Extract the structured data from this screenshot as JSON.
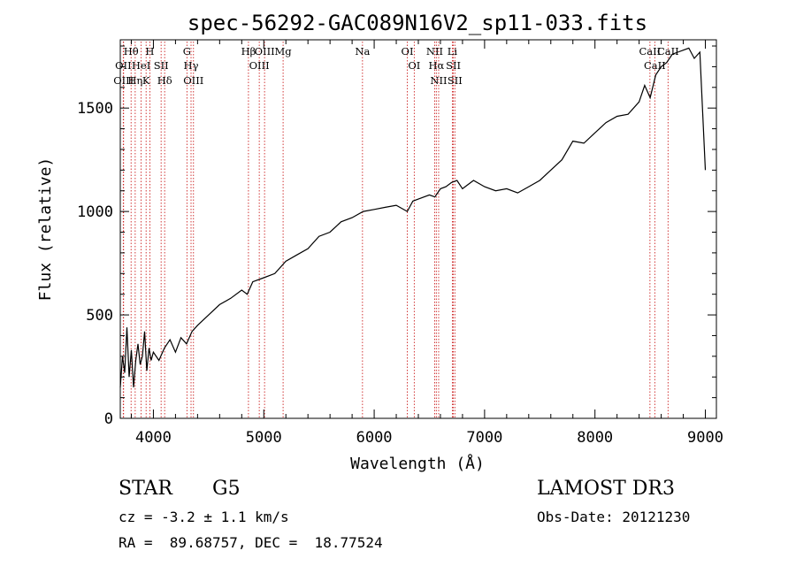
{
  "chart_data": {
    "type": "line",
    "title": "spec-56292-GAC089N16V2_sp11-033.fits",
    "xlabel": "Wavelength (Å)",
    "ylabel": "Flux (relative)",
    "xlim": [
      3700,
      9100
    ],
    "ylim": [
      0,
      1830
    ],
    "xticks": [
      4000,
      5000,
      6000,
      7000,
      8000,
      9000
    ],
    "yticks": [
      0,
      500,
      1000,
      1500
    ],
    "xticklabels": [
      "4000",
      "5000",
      "6000",
      "7000",
      "8000",
      "9000"
    ],
    "yticklabels": [
      "0",
      "500",
      "1000",
      "1500"
    ],
    "series": [
      {
        "name": "flux",
        "x": [
          3700,
          3720,
          3740,
          3760,
          3780,
          3800,
          3820,
          3840,
          3860,
          3880,
          3900,
          3920,
          3940,
          3960,
          3980,
          4000,
          4050,
          4100,
          4150,
          4200,
          4250,
          4300,
          4350,
          4400,
          4500,
          4600,
          4700,
          4800,
          4850,
          4900,
          5000,
          5100,
          5200,
          5300,
          5400,
          5500,
          5600,
          5700,
          5800,
          5900,
          6000,
          6100,
          6200,
          6300,
          6350,
          6400,
          6500,
          6550,
          6600,
          6650,
          6700,
          6750,
          6800,
          6900,
          7000,
          7100,
          7200,
          7300,
          7400,
          7500,
          7600,
          7700,
          7800,
          7900,
          8000,
          8100,
          8200,
          8300,
          8400,
          8450,
          8500,
          8550,
          8600,
          8650,
          8700,
          8750,
          8800,
          8850,
          8900,
          8950,
          9000
        ],
        "y": [
          150,
          300,
          220,
          440,
          200,
          330,
          150,
          280,
          360,
          260,
          300,
          420,
          230,
          340,
          280,
          320,
          280,
          340,
          380,
          320,
          390,
          360,
          420,
          450,
          500,
          550,
          580,
          620,
          600,
          660,
          680,
          700,
          760,
          790,
          820,
          880,
          900,
          950,
          970,
          1000,
          1010,
          1020,
          1030,
          1000,
          1050,
          1060,
          1080,
          1070,
          1110,
          1120,
          1140,
          1150,
          1110,
          1150,
          1120,
          1100,
          1110,
          1090,
          1120,
          1150,
          1200,
          1250,
          1340,
          1330,
          1380,
          1430,
          1460,
          1470,
          1530,
          1610,
          1550,
          1660,
          1700,
          1720,
          1760,
          1770,
          1780,
          1790,
          1740,
          1770,
          1200
        ]
      }
    ],
    "lines": [
      {
        "label": "Hθ",
        "wl": 3798
      },
      {
        "label": "OII",
        "wl": 3727
      },
      {
        "label": "OIII",
        "wl": 3730
      },
      {
        "label": "Hη",
        "wl": 3835
      },
      {
        "label": "HeI",
        "wl": 3889
      },
      {
        "label": "K",
        "wl": 3934
      },
      {
        "label": "H",
        "wl": 3968
      },
      {
        "label": "SII",
        "wl": 4070
      },
      {
        "label": "Hδ",
        "wl": 4102
      },
      {
        "label": "G",
        "wl": 4304
      },
      {
        "label": "Hγ",
        "wl": 4341
      },
      {
        "label": "OIII",
        "wl": 4363
      },
      {
        "label": "Hβ",
        "wl": 4861
      },
      {
        "label": "OIII",
        "wl": 4959
      },
      {
        "label": "OIII",
        "wl": 5007
      },
      {
        "label": "Mg",
        "wl": 5175
      },
      {
        "label": "Na",
        "wl": 5894
      },
      {
        "label": "OI",
        "wl": 6300
      },
      {
        "label": "OI",
        "wl": 6363
      },
      {
        "label": "NII",
        "wl": 6548
      },
      {
        "label": "Hα",
        "wl": 6563
      },
      {
        "label": "NII",
        "wl": 6584
      },
      {
        "label": "Li",
        "wl": 6708
      },
      {
        "label": "SII",
        "wl": 6717
      },
      {
        "label": "SII",
        "wl": 6731
      },
      {
        "label": "CaII",
        "wl": 8498
      },
      {
        "label": "CaII",
        "wl": 8542
      },
      {
        "label": "CaII",
        "wl": 8662
      }
    ]
  },
  "info": {
    "object_class": "STAR",
    "subclass": "G5",
    "survey": "LAMOST DR3",
    "redshift": "cz = -3.2 ± 1.1 km/s",
    "obs_date": "Obs-Date: 20121230",
    "coords": "RA =  89.68757, DEC =  18.77524"
  },
  "colors": {
    "line_marker": "#cc2222",
    "spectrum": "#000000"
  }
}
